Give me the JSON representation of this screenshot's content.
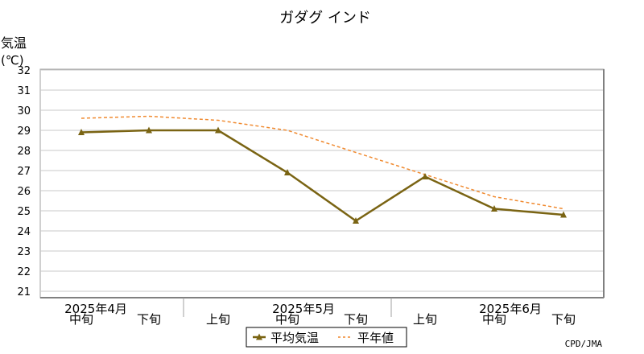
{
  "chart_data": {
    "type": "line",
    "title": "ガダグ インド",
    "ylabel": "気温",
    "yunit": "(℃)",
    "ylim": [
      21,
      32
    ],
    "yticks": [
      21,
      22,
      23,
      24,
      25,
      26,
      27,
      28,
      29,
      30,
      31,
      32
    ],
    "grid": true,
    "legend_position": "bottom-center",
    "credit": "CPD/JMA",
    "month_labels": [
      "2025年4月",
      "2025年5月",
      "2025年6月"
    ],
    "categories": [
      "中旬",
      "下旬",
      "上旬",
      "中旬",
      "下旬",
      "上旬",
      "中旬",
      "下旬"
    ],
    "series": [
      {
        "name": "平均気温",
        "color": "#7a6413",
        "style": "solid-triangle-markers",
        "values": [
          28.9,
          29.0,
          29.0,
          26.9,
          24.5,
          26.7,
          25.1,
          24.8
        ]
      },
      {
        "name": "平年値",
        "color": "#f08a30",
        "style": "dashed",
        "values": [
          29.6,
          29.7,
          29.5,
          29.0,
          27.9,
          26.8,
          25.7,
          25.1
        ]
      }
    ]
  }
}
